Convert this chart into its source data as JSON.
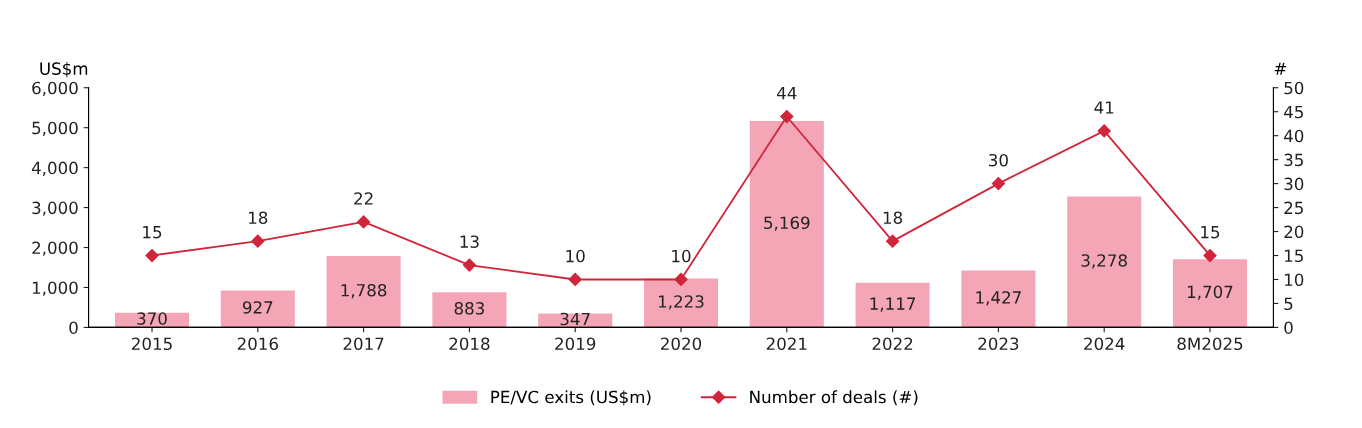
{
  "chart_data": {
    "type": "bar",
    "categories": [
      "2015",
      "2016",
      "2017",
      "2018",
      "2019",
      "2020",
      "2021",
      "2022",
      "2023",
      "2024",
      "8M2025"
    ],
    "ylabel": "US$m",
    "y2label": "#",
    "series": [
      {
        "name": "PE/VC exits (US$m)",
        "color": "#f4a6b7",
        "values": [
          370,
          927,
          1788,
          883,
          347,
          1223,
          5169,
          1117,
          1427,
          3278,
          1707
        ],
        "value_labels": [
          "370",
          "927",
          "1,788",
          "883",
          "347",
          "1,223",
          "5,169",
          "1,117",
          "1,427",
          "3,278",
          "1,707"
        ]
      },
      {
        "name": "Number of deals (#)",
        "type": "line",
        "axis": "y2",
        "color": "#d0253a",
        "marker": "diamond",
        "line_style": "solid",
        "values": [
          15,
          18,
          22,
          13,
          10,
          10,
          44,
          18,
          30,
          41,
          15
        ],
        "value_labels": [
          "15",
          "18",
          "22",
          "13",
          "10",
          "10",
          "44",
          "18",
          "30",
          "41",
          "15"
        ]
      }
    ],
    "ylim": [
      0,
      6000
    ],
    "yticks": [
      0,
      {
        "value": 1000,
        "label": "1,000"
      },
      {
        "value": 2000,
        "label": "2,000"
      },
      {
        "value": 3000,
        "label": "3,000"
      },
      {
        "value": 4000,
        "label": "4,000"
      },
      {
        "value": 5000,
        "label": "5,000"
      },
      {
        "value": 6000,
        "label": "6,000"
      }
    ],
    "y2lim": [
      0,
      50
    ],
    "y2ticks": [
      0,
      5,
      10,
      15,
      20,
      25,
      30,
      35,
      40,
      45,
      50
    ],
    "grid": false,
    "legend": "bottom"
  }
}
